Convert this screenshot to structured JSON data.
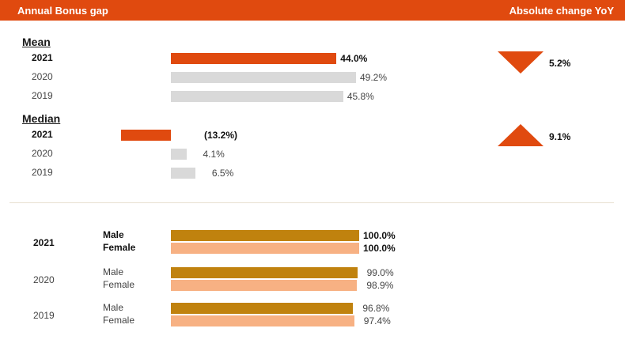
{
  "header": {
    "title": "Annual Bonus gap",
    "right_title": "Absolute change YoY"
  },
  "colors": {
    "accent": "#E04A0F",
    "previous_year": "#D9D9D9",
    "male": "#C0820E",
    "female": "#F7B183"
  },
  "chart_data": [
    {
      "type": "bar",
      "orientation": "horizontal",
      "section_label": "Mean",
      "categories": [
        "2021",
        "2020",
        "2019"
      ],
      "values": [
        44.0,
        49.2,
        45.8
      ],
      "labels": [
        "44.0%",
        "49.2%",
        "45.8%"
      ],
      "unit": "%",
      "change_yoy": {
        "direction": "down",
        "label": "5.2%"
      }
    },
    {
      "type": "bar",
      "orientation": "horizontal",
      "section_label": "Median",
      "categories": [
        "2021",
        "2020",
        "2019"
      ],
      "values": [
        -13.2,
        4.1,
        6.5
      ],
      "labels": [
        "(13.2%)",
        "4.1%",
        "6.5%"
      ],
      "unit": "%",
      "change_yoy": {
        "direction": "up",
        "label": "9.1%"
      }
    },
    {
      "type": "bar",
      "orientation": "horizontal",
      "categories": [
        "2021",
        "2020",
        "2019"
      ],
      "series": [
        {
          "name": "Male",
          "values": [
            100.0,
            99.0,
            96.8
          ],
          "labels": [
            "100.0%",
            "99.0%",
            "96.8%"
          ]
        },
        {
          "name": "Female",
          "values": [
            100.0,
            98.9,
            97.4
          ],
          "labels": [
            "100.0%",
            "98.9%",
            "97.4%"
          ]
        }
      ],
      "unit": "%"
    }
  ]
}
